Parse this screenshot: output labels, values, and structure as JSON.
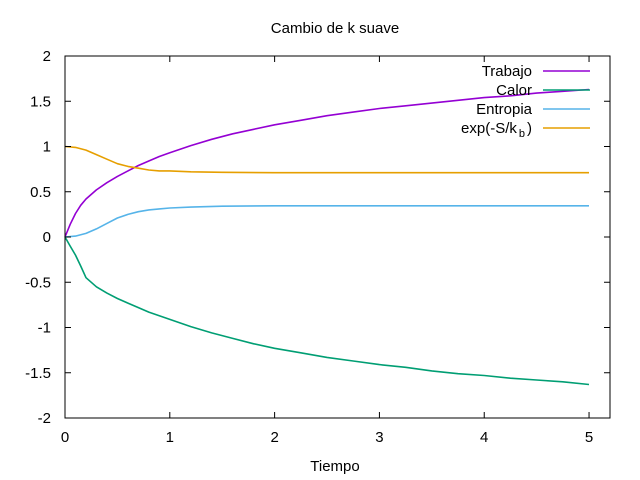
{
  "chart_data": {
    "type": "line",
    "title": "Cambio de k suave",
    "xlabel": "Tiempo",
    "ylabel": "",
    "xlim": [
      0,
      5.2
    ],
    "ylim": [
      -2,
      2
    ],
    "xticks": [
      "0",
      "1",
      "2",
      "3",
      "4",
      "5"
    ],
    "yticks": [
      "-2",
      "-1.5",
      "-1",
      "-0.5",
      "0",
      "0.5",
      "1",
      "1.5",
      "2"
    ],
    "grid": false,
    "legend_position": "top-right",
    "series": [
      {
        "name": "Trabajo",
        "legend_main": "Trabajo",
        "legend_sub": "",
        "legend_tail": "",
        "color": "#9400d3",
        "x": [
          0,
          0.05,
          0.1,
          0.15,
          0.2,
          0.3,
          0.4,
          0.5,
          0.6,
          0.7,
          0.8,
          0.9,
          1.0,
          1.2,
          1.4,
          1.6,
          1.8,
          2.0,
          2.25,
          2.5,
          2.75,
          3.0,
          3.25,
          3.5,
          3.75,
          4.0,
          4.25,
          4.5,
          4.75,
          5.0
        ],
        "y": [
          0,
          0.14,
          0.26,
          0.35,
          0.42,
          0.52,
          0.6,
          0.67,
          0.73,
          0.79,
          0.84,
          0.89,
          0.93,
          1.01,
          1.08,
          1.14,
          1.19,
          1.24,
          1.29,
          1.34,
          1.38,
          1.42,
          1.45,
          1.48,
          1.51,
          1.54,
          1.56,
          1.59,
          1.61,
          1.63
        ]
      },
      {
        "name": "Calor",
        "legend_main": "Calor",
        "legend_sub": "",
        "legend_tail": "",
        "color": "#009e73",
        "x": [
          0,
          0.05,
          0.1,
          0.15,
          0.2,
          0.3,
          0.4,
          0.5,
          0.6,
          0.7,
          0.8,
          0.9,
          1.0,
          1.2,
          1.4,
          1.6,
          1.8,
          2.0,
          2.25,
          2.5,
          2.75,
          3.0,
          3.25,
          3.5,
          3.75,
          4.0,
          4.25,
          4.5,
          4.75,
          5.0
        ],
        "y": [
          0,
          -0.1,
          -0.2,
          -0.32,
          -0.45,
          -0.55,
          -0.62,
          -0.68,
          -0.73,
          -0.78,
          -0.83,
          -0.87,
          -0.91,
          -0.99,
          -1.06,
          -1.12,
          -1.18,
          -1.23,
          -1.28,
          -1.33,
          -1.37,
          -1.41,
          -1.44,
          -1.48,
          -1.51,
          -1.53,
          -1.56,
          -1.58,
          -1.6,
          -1.63
        ]
      },
      {
        "name": "Entropia",
        "legend_main": "Entropia",
        "legend_sub": "",
        "legend_tail": "",
        "color": "#56b4e9",
        "x": [
          0,
          0.1,
          0.2,
          0.3,
          0.4,
          0.5,
          0.6,
          0.7,
          0.8,
          0.9,
          1.0,
          1.2,
          1.5,
          2.0,
          2.5,
          3.0,
          3.5,
          4.0,
          4.5,
          5.0
        ],
        "y": [
          0,
          0.01,
          0.04,
          0.09,
          0.15,
          0.21,
          0.25,
          0.28,
          0.3,
          0.31,
          0.32,
          0.33,
          0.34,
          0.345,
          0.345,
          0.345,
          0.345,
          0.345,
          0.345,
          0.345
        ]
      },
      {
        "name": "exp(-S/k_b)",
        "legend_main": "exp(-S/k",
        "legend_sub": "b",
        "legend_tail": ")",
        "color": "#e69f00",
        "x": [
          0,
          0.1,
          0.2,
          0.3,
          0.4,
          0.5,
          0.6,
          0.7,
          0.8,
          0.9,
          1.0,
          1.2,
          1.5,
          2.0,
          2.5,
          3.0,
          3.5,
          4.0,
          4.5,
          5.0
        ],
        "y": [
          1.0,
          0.99,
          0.96,
          0.91,
          0.86,
          0.81,
          0.78,
          0.76,
          0.74,
          0.73,
          0.73,
          0.72,
          0.715,
          0.71,
          0.71,
          0.71,
          0.71,
          0.71,
          0.71,
          0.71
        ]
      }
    ]
  }
}
